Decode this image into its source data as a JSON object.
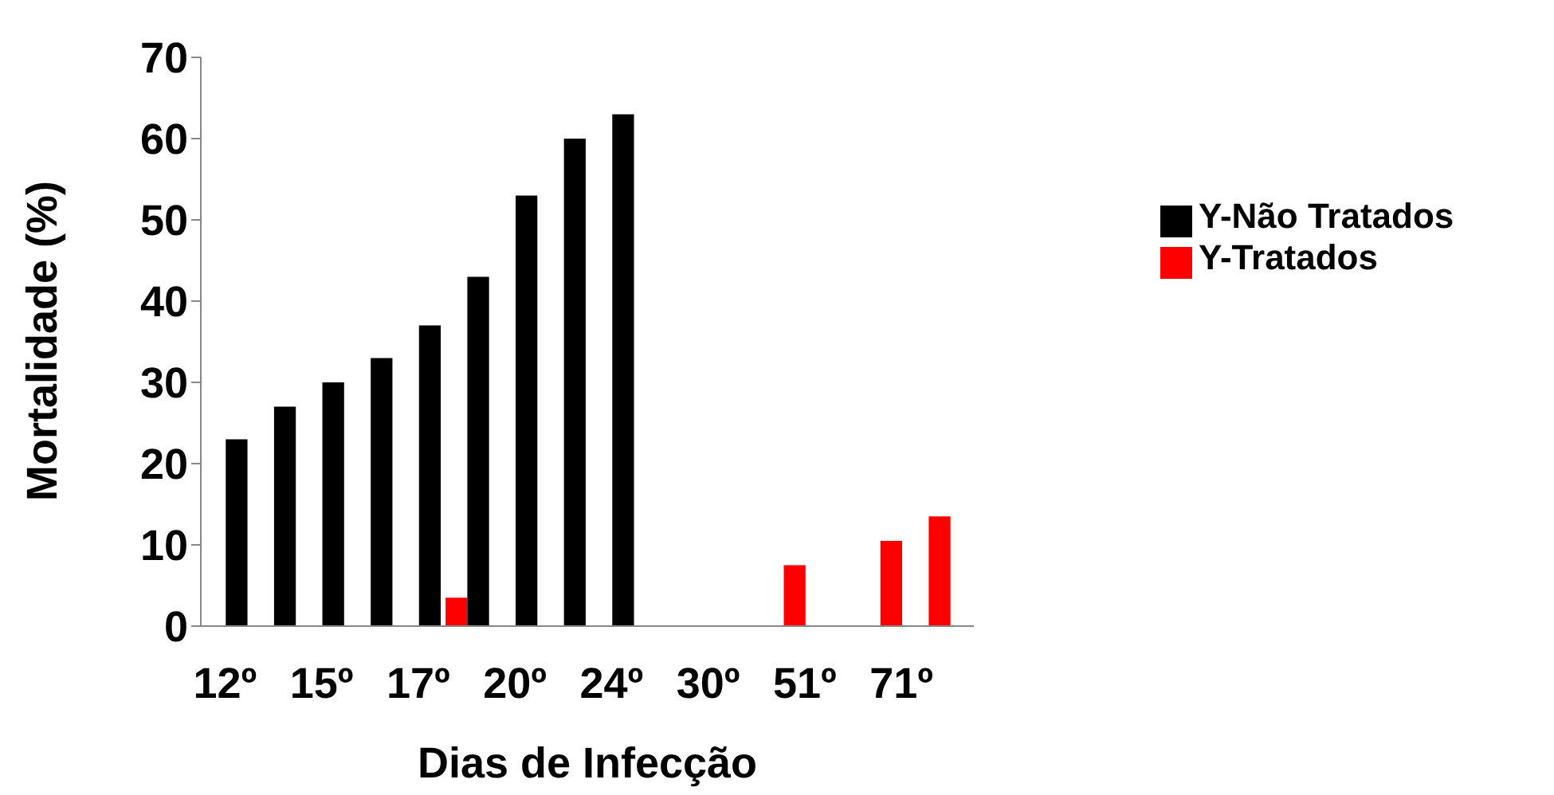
{
  "chart_data": {
    "type": "bar",
    "xlabel": "Dias de Infecção",
    "ylabel": "Mortalidade (%)",
    "categories": [
      "12º",
      null,
      "15º",
      null,
      "17º",
      null,
      "20º",
      null,
      "24º",
      null,
      "30º",
      null,
      "51º",
      null,
      "71º",
      null
    ],
    "series": [
      {
        "name": "Y-Tratados",
        "color": "#ff0000",
        "values": [
          null,
          null,
          null,
          null,
          null,
          3.5,
          null,
          null,
          null,
          null,
          null,
          null,
          7.5,
          null,
          10.5,
          13.5
        ]
      },
      {
        "name": "Y-Não Tratados",
        "color": "#000000",
        "values": [
          23,
          27,
          30,
          33,
          37,
          43,
          53,
          60,
          63,
          null,
          null,
          null,
          null,
          null,
          null,
          null
        ]
      }
    ],
    "ylim": [
      0,
      70
    ],
    "yticks": [
      0,
      10,
      20,
      30,
      40,
      50,
      60,
      70
    ],
    "grid": false,
    "legend": "top right"
  }
}
